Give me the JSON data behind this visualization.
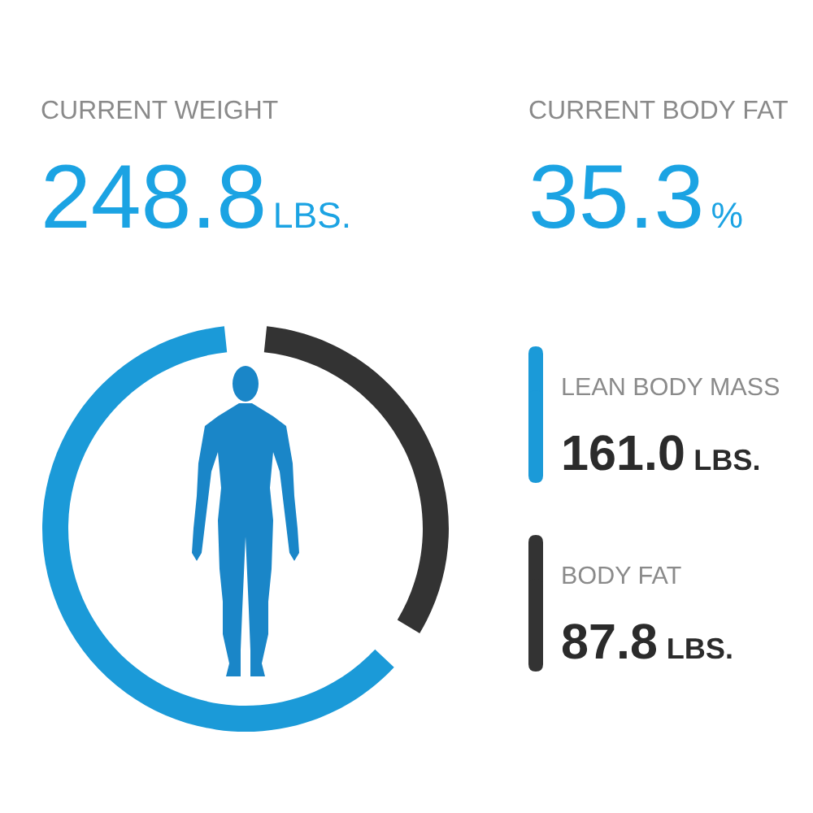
{
  "chart_data": {
    "type": "donut",
    "categories": [
      "LEAN BODY MASS",
      "BODY FAT"
    ],
    "values": [
      161.0,
      87.8
    ],
    "colors": [
      "#1b9ad8",
      "#333333"
    ],
    "value_labels": [
      "161.0 LBS.",
      "87.8 LBS."
    ],
    "legend": "right",
    "annotations": [
      "CURRENT WEIGHT",
      "248.8 LBS.",
      "CURRENT BODY FAT",
      "35.3 %"
    ]
  }
}
